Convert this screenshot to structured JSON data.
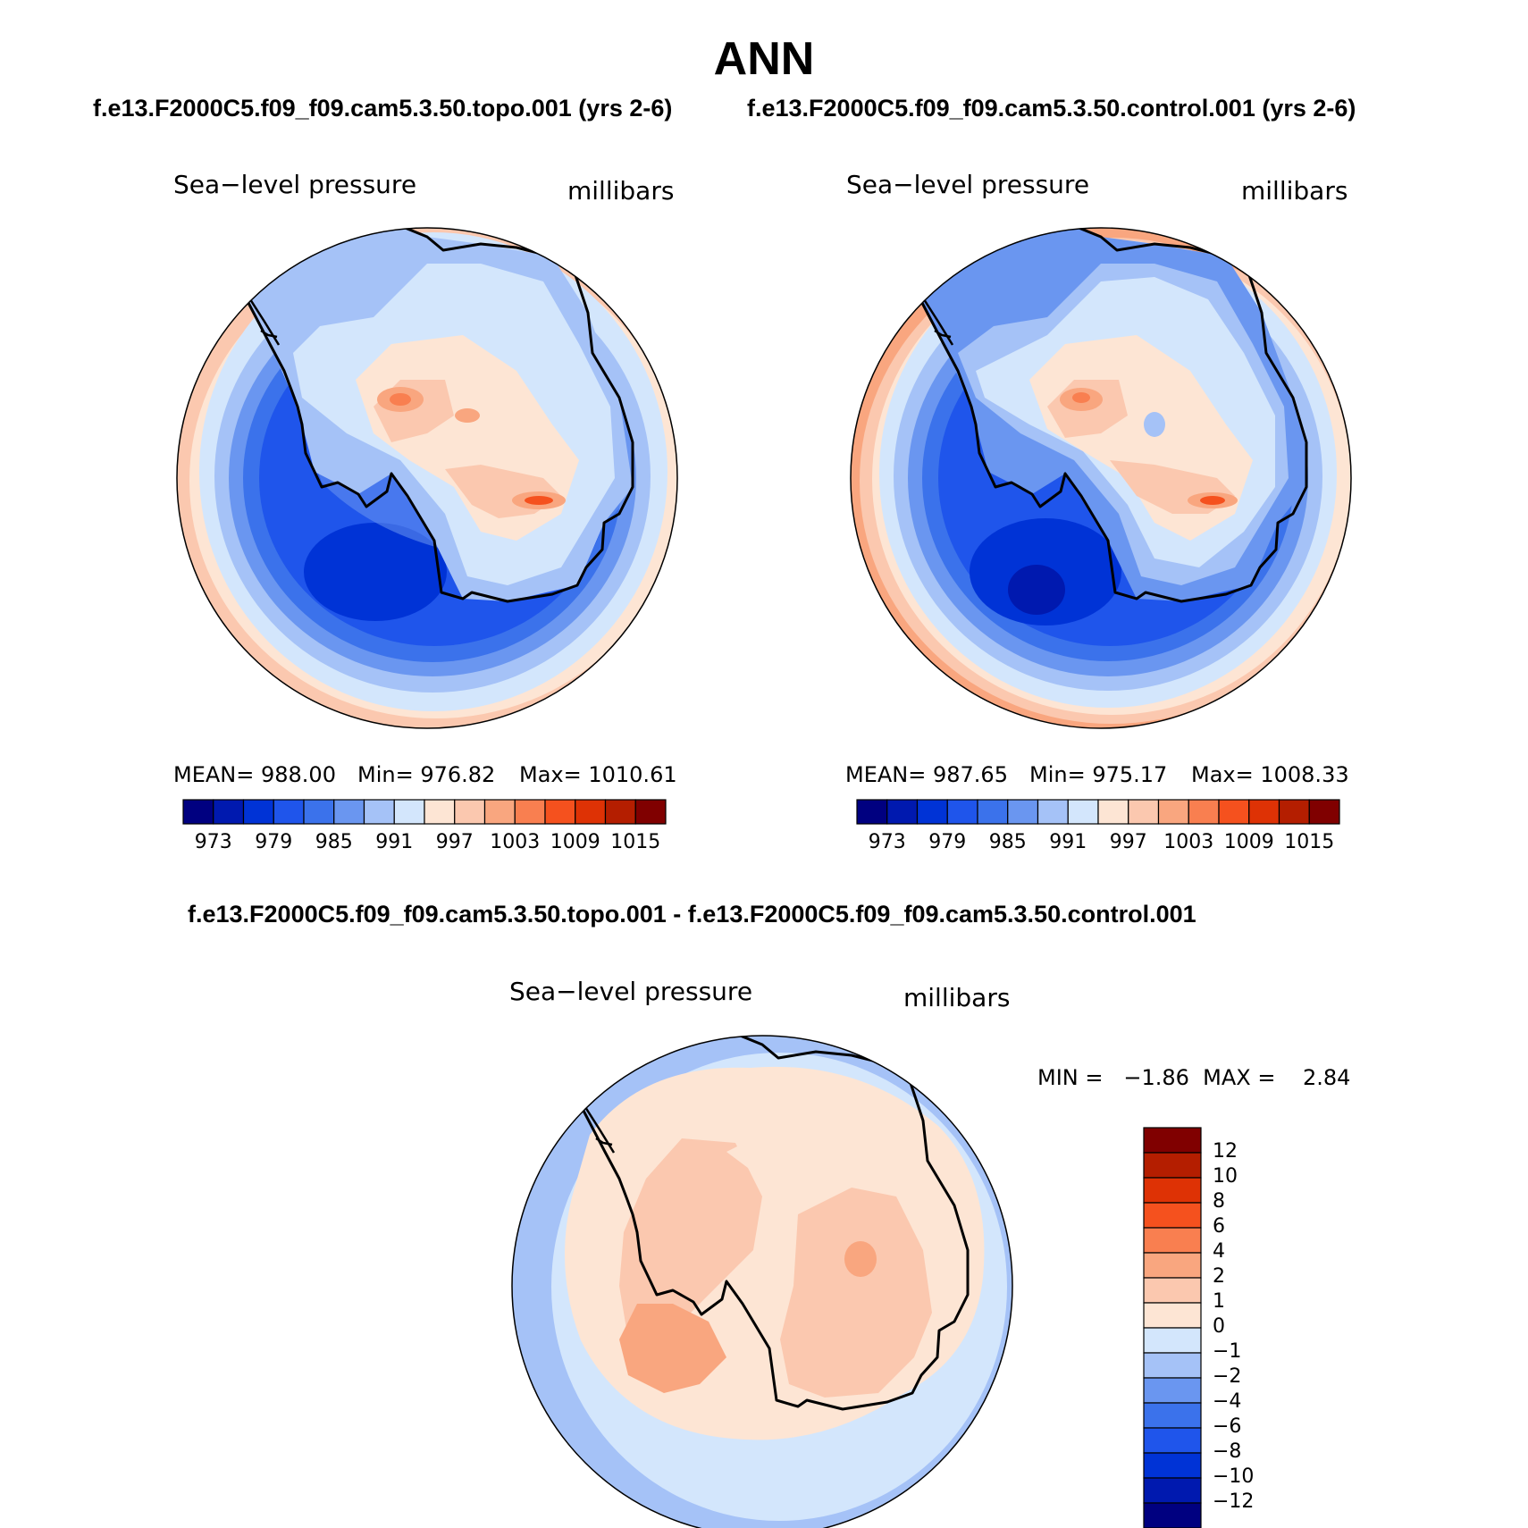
{
  "title": "ANN",
  "palette": {
    "full": [
      "#000080",
      "#0019AF",
      "#0033D6",
      "#1F55EB",
      "#3B72EB",
      "#6A96F0",
      "#A5C2F7",
      "#D3E6FC",
      "#FDE5D4",
      "#FBC8AF",
      "#F9A67F",
      "#F97F50",
      "#F5511E",
      "#DE3205",
      "#B41E00",
      "#800000"
    ],
    "diff": [
      "#000080",
      "#0019AF",
      "#0033D6",
      "#1F55EB",
      "#3B72EB",
      "#6A96F0",
      "#A5C2F7",
      "#D3E6FC",
      "#FDE5D4",
      "#FBC8AF",
      "#F9A67F",
      "#F97F50",
      "#F5511E",
      "#DE3205",
      "#B41E00",
      "#800000"
    ]
  },
  "panels": [
    {
      "case": "f.e13.F2000C5.f09_f09.cam5.3.50.topo.001 (yrs 2-6)",
      "variable": "Sea−level pressure",
      "units": "millibars",
      "stats": {
        "mean": "MEAN=  988.00",
        "min": "Min=  976.82",
        "max": "Max=  1010.61"
      },
      "colorbar_ticks": [
        "973",
        "979",
        "985",
        "991",
        "997",
        "1003",
        "1009",
        "1015"
      ]
    },
    {
      "case": "f.e13.F2000C5.f09_f09.cam5.3.50.control.001 (yrs 2-6)",
      "variable": "Sea−level pressure",
      "units": "millibars",
      "stats": {
        "mean": "MEAN=  987.65",
        "min": "Min=  975.17",
        "max": "Max=  1008.33"
      },
      "colorbar_ticks": [
        "973",
        "979",
        "985",
        "991",
        "997",
        "1003",
        "1009",
        "1015"
      ]
    }
  ],
  "difference": {
    "title": "f.e13.F2000C5.f09_f09.cam5.3.50.topo.001 - f.e13.F2000C5.f09_f09.cam5.3.50.control.001",
    "variable": "Sea−level pressure",
    "units": "millibars",
    "minmax": "MIN =   −1.86  MAX =    2.84",
    "colorbar_ticks": [
      "12",
      "10",
      "8",
      "6",
      "4",
      "2",
      "1",
      "0",
      "−1",
      "−2",
      "−4",
      "−6",
      "−8",
      "−10",
      "−12"
    ]
  }
}
